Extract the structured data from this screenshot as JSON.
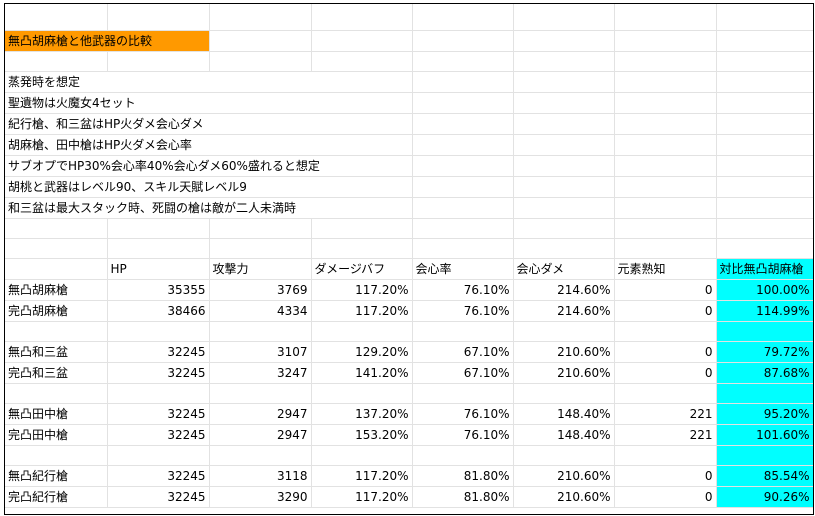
{
  "title": "無凸胡麻槍と他武器の比較",
  "notes": [
    "蒸発時を想定",
    "聖遺物は火魔女4セット",
    "紀行槍、和三盆はHP火ダメ会心ダメ",
    "胡麻槍、田中槍はHP火ダメ会心率",
    "サブオプでHP30%会心率40%会心ダメ60%盛れると想定",
    "胡桃と武器はレベル90、スキル天賦レベル9",
    "和三盆は最大スタック時、死闘の槍は敵が二人未満時"
  ],
  "headers": [
    "",
    "HP",
    "攻撃力",
    "ダメージバフ",
    "会心率",
    "会心ダメ",
    "元素熟知",
    "対比無凸胡麻槍"
  ],
  "rows": [
    [
      "無凸胡麻槍",
      "35355",
      "3769",
      "117.20%",
      "76.10%",
      "214.60%",
      "0",
      "100.00%"
    ],
    [
      "完凸胡麻槍",
      "38466",
      "4334",
      "117.20%",
      "76.10%",
      "214.60%",
      "0",
      "114.99%"
    ],
    [
      "無凸和三盆",
      "32245",
      "3107",
      "129.20%",
      "67.10%",
      "210.60%",
      "0",
      "79.72%"
    ],
    [
      "完凸和三盆",
      "32245",
      "3247",
      "141.20%",
      "67.10%",
      "210.60%",
      "0",
      "87.68%"
    ],
    [
      "無凸田中槍",
      "32245",
      "2947",
      "137.20%",
      "76.10%",
      "148.40%",
      "221",
      "95.20%"
    ],
    [
      "完凸田中槍",
      "32245",
      "2947",
      "153.20%",
      "76.10%",
      "148.40%",
      "221",
      "101.60%"
    ],
    [
      "無凸紀行槍",
      "32245",
      "3118",
      "117.20%",
      "81.80%",
      "210.60%",
      "0",
      "85.54%"
    ],
    [
      "完凸紀行槍",
      "32245",
      "3290",
      "117.20%",
      "81.80%",
      "210.60%",
      "0",
      "90.26%"
    ]
  ],
  "colors": {
    "title_bg": "#ff9900",
    "ratio_column_bg": "#00ffff"
  }
}
